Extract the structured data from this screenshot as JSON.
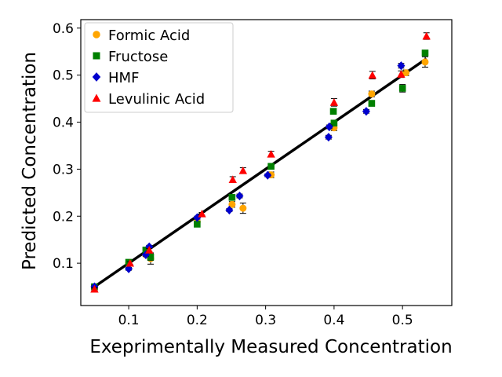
{
  "chart_data": {
    "type": "scatter",
    "xlabel": "Exeprimentally Measured Concentration",
    "ylabel": "Predicted Concentration",
    "xlim": [
      0.03,
      0.572
    ],
    "ylim": [
      0.01,
      0.618
    ],
    "xticks": [
      0.1,
      0.2,
      0.3,
      0.4,
      0.5
    ],
    "yticks": [
      0.1,
      0.2,
      0.3,
      0.4,
      0.5,
      0.6
    ],
    "xtick_labels": [
      "0.1",
      "0.2",
      "0.3",
      "0.4",
      "0.5"
    ],
    "ytick_labels": [
      "0.1",
      "0.2",
      "0.3",
      "0.4",
      "0.5",
      "0.6"
    ],
    "grid": false,
    "legend_position": "top-left",
    "fit_line": {
      "x": [
        0.05,
        0.535
      ],
      "y": [
        0.05,
        0.535
      ],
      "color": "#000000"
    },
    "series": [
      {
        "name": "Formic Acid",
        "color": "#FFA500",
        "marker": "circle",
        "points": [
          {
            "x": 0.05,
            "y": 0.048,
            "err": 0.004
          },
          {
            "x": 0.1,
            "y": 0.1,
            "err": 0.004
          },
          {
            "x": 0.125,
            "y": 0.118,
            "err": 0.004
          },
          {
            "x": 0.132,
            "y": 0.11,
            "err": 0.012
          },
          {
            "x": 0.2,
            "y": 0.188,
            "err": 0.004
          },
          {
            "x": 0.251,
            "y": 0.225,
            "err": 0.006
          },
          {
            "x": 0.267,
            "y": 0.217,
            "err": 0.011
          },
          {
            "x": 0.308,
            "y": 0.288,
            "err": 0.006
          },
          {
            "x": 0.4,
            "y": 0.388,
            "err": 0.006
          },
          {
            "x": 0.455,
            "y": 0.46,
            "err": 0.006
          },
          {
            "x": 0.505,
            "y": 0.505,
            "err": 0.006
          },
          {
            "x": 0.533,
            "y": 0.528,
            "err": 0.011
          }
        ]
      },
      {
        "name": "Fructose",
        "color": "#008000",
        "marker": "square",
        "points": [
          {
            "x": 0.05,
            "y": 0.05,
            "err": 0.003
          },
          {
            "x": 0.1,
            "y": 0.102,
            "err": 0.003
          },
          {
            "x": 0.125,
            "y": 0.128,
            "err": 0.004
          },
          {
            "x": 0.132,
            "y": 0.113,
            "err": 0.007
          },
          {
            "x": 0.2,
            "y": 0.183,
            "err": 0.004
          },
          {
            "x": 0.251,
            "y": 0.24,
            "err": 0.004
          },
          {
            "x": 0.308,
            "y": 0.306,
            "err": 0.004
          },
          {
            "x": 0.4,
            "y": 0.398,
            "err": 0.005
          },
          {
            "x": 0.399,
            "y": 0.423,
            "err": 0.005
          },
          {
            "x": 0.455,
            "y": 0.44,
            "err": 0.006
          },
          {
            "x": 0.5,
            "y": 0.472,
            "err": 0.008
          },
          {
            "x": 0.533,
            "y": 0.547,
            "err": 0.006
          }
        ]
      },
      {
        "name": "HMF",
        "color": "#0000CD",
        "marker": "diamond",
        "points": [
          {
            "x": 0.05,
            "y": 0.05,
            "err": 0.003
          },
          {
            "x": 0.1,
            "y": 0.088,
            "err": 0.003
          },
          {
            "x": 0.125,
            "y": 0.118,
            "err": 0.003
          },
          {
            "x": 0.13,
            "y": 0.135,
            "err": 0.003
          },
          {
            "x": 0.2,
            "y": 0.197,
            "err": 0.003
          },
          {
            "x": 0.247,
            "y": 0.213,
            "err": 0.003
          },
          {
            "x": 0.262,
            "y": 0.243,
            "err": 0.004
          },
          {
            "x": 0.303,
            "y": 0.287,
            "err": 0.003
          },
          {
            "x": 0.392,
            "y": 0.368,
            "err": 0.004
          },
          {
            "x": 0.393,
            "y": 0.39,
            "err": 0.004
          },
          {
            "x": 0.447,
            "y": 0.423,
            "err": 0.004
          },
          {
            "x": 0.498,
            "y": 0.52,
            "err": 0.005
          }
        ]
      },
      {
        "name": "Levulinic Acid",
        "color": "#FF0000",
        "marker": "triangle",
        "points": [
          {
            "x": 0.05,
            "y": 0.045,
            "err": 0.003
          },
          {
            "x": 0.102,
            "y": 0.1,
            "err": 0.003
          },
          {
            "x": 0.13,
            "y": 0.128,
            "err": 0.003
          },
          {
            "x": 0.207,
            "y": 0.205,
            "err": 0.003
          },
          {
            "x": 0.252,
            "y": 0.278,
            "err": 0.006
          },
          {
            "x": 0.267,
            "y": 0.297,
            "err": 0.006
          },
          {
            "x": 0.308,
            "y": 0.332,
            "err": 0.006
          },
          {
            "x": 0.4,
            "y": 0.442,
            "err": 0.008
          },
          {
            "x": 0.456,
            "y": 0.5,
            "err": 0.008
          },
          {
            "x": 0.498,
            "y": 0.502,
            "err": 0.007
          },
          {
            "x": 0.535,
            "y": 0.583,
            "err": 0.007
          }
        ]
      }
    ]
  }
}
